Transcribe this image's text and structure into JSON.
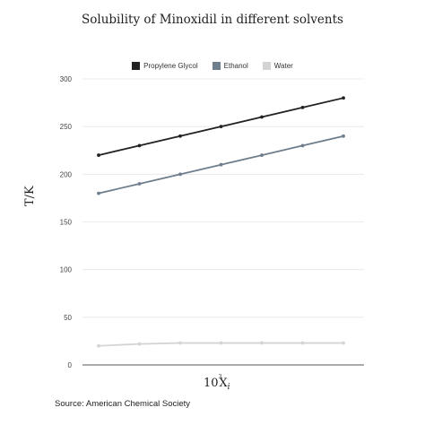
{
  "chart_data": {
    "type": "line",
    "title": "Solubility of Minoxidil in different solvents",
    "ylabel": "T/K",
    "xlabel_prefix": "10",
    "xlabel_sup": "3",
    "xlabel_main": "X",
    "xlabel_sub": "i",
    "ylim": [
      0,
      300
    ],
    "yticks": [
      0,
      50,
      100,
      150,
      200,
      250,
      300
    ],
    "x": [
      1,
      2,
      3,
      4,
      5,
      6,
      7
    ],
    "grid": true,
    "legend_position": "top-center",
    "series": [
      {
        "name": "Propylene Glycol",
        "color": "#222222",
        "values": [
          220,
          230,
          240,
          250,
          260,
          270,
          280
        ]
      },
      {
        "name": "Ethanol",
        "color": "#6f7e8c",
        "values": [
          180,
          190,
          200,
          210,
          220,
          230,
          240
        ]
      },
      {
        "name": "Water",
        "color": "#d4d4d4",
        "values": [
          20,
          22,
          23,
          23,
          23,
          23,
          23
        ]
      }
    ]
  },
  "source": "Source: American Chemical Society"
}
